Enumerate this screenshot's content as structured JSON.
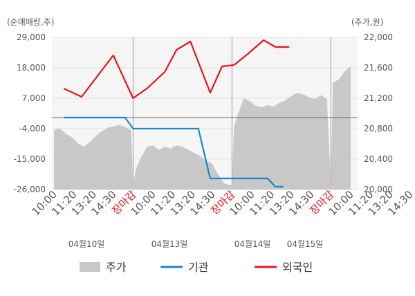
{
  "chart_data": {
    "type": "line",
    "left_axis_title": "(순매매량,주)",
    "right_axis_title": "(주가,원)",
    "left_ylim": [
      -26000,
      29000
    ],
    "left_ticks": [
      "29,000",
      "18,000",
      "7,000",
      "-4,000",
      "-15,000",
      "-26,000"
    ],
    "left_tick_values": [
      29000,
      18000,
      7000,
      -4000,
      -15000,
      -26000
    ],
    "right_ylim": [
      20000,
      22000
    ],
    "right_ticks": [
      "22,000",
      "21,600",
      "21,200",
      "20,800",
      "20,400",
      "20,000"
    ],
    "right_tick_values": [
      22000,
      21600,
      21200,
      20800,
      20400,
      20000
    ],
    "zero_line": 0,
    "x_tick_labels": [
      "10:00",
      "11:20",
      "13:20",
      "14:30",
      "장마감",
      "10:00",
      "11:20",
      "13:20",
      "14:30",
      "장마감",
      "10:00",
      "11:20",
      "13:20",
      "14:30",
      "장마감",
      "10:00",
      "11:20",
      "13:20",
      "14:30"
    ],
    "x_close_label": "장마감",
    "dates": [
      "04월10일",
      "04월13일",
      "04월14일",
      "04월15일"
    ],
    "grid": true,
    "legend_position": "bottom",
    "series": [
      {
        "name": "주가",
        "type": "area",
        "color": "#c8c8c8",
        "axis": "right",
        "x": [
          0,
          0.3,
          0.6,
          0.9,
          1.2,
          1.5,
          1.8,
          2.1,
          2.4,
          2.7,
          3.0,
          3.3,
          3.6,
          3.9,
          4.0,
          4.15,
          4.4,
          4.7,
          5.0,
          5.3,
          5.6,
          5.9,
          6.2,
          6.5,
          6.8,
          7.1,
          7.4,
          7.7,
          8.0,
          8.3,
          8.6,
          8.9,
          9.0,
          9.1,
          9.3,
          9.6,
          9.9,
          10.2,
          10.5,
          10.8,
          11.1,
          11.4,
          11.7,
          12.0,
          12.3,
          12.6,
          12.9,
          13.2,
          13.5,
          13.8,
          14.0,
          14.1,
          14.4,
          14.7,
          15.0
        ],
        "values": [
          20780,
          20800,
          20730,
          20690,
          20610,
          20560,
          20620,
          20700,
          20760,
          20810,
          20830,
          20850,
          20820,
          20780,
          20060,
          20270,
          20420,
          20560,
          20580,
          20520,
          20560,
          20540,
          20580,
          20560,
          20520,
          20480,
          20440,
          20380,
          20340,
          20200,
          20080,
          20060,
          20060,
          20820,
          20990,
          21200,
          21160,
          21100,
          21080,
          21110,
          21090,
          21140,
          21170,
          21230,
          21270,
          21250,
          21210,
          21190,
          21240,
          21190,
          20060,
          21400,
          21450,
          21550,
          21620
        ]
      },
      {
        "name": "기관",
        "type": "line",
        "color": "#1a85c8",
        "axis": "left",
        "x": [
          0.5,
          3.6,
          4.0,
          4.2,
          6.6,
          7.3,
          7.9,
          10.8,
          11.2,
          11.6
        ],
        "values": [
          0,
          0,
          -4000,
          -4000,
          -4000,
          -4000,
          -22000,
          -22000,
          -25000,
          -25000
        ]
      },
      {
        "name": "외국인",
        "type": "line",
        "color": "#e8131b",
        "axis": "left",
        "x": [
          0.5,
          1.4,
          2.2,
          3.0,
          4.0,
          4.7,
          5.6,
          6.2,
          6.9,
          7.9,
          8.5,
          9.1,
          9.8,
          10.6,
          11.2,
          11.9
        ],
        "values": [
          10500,
          7500,
          15000,
          22500,
          7000,
          10500,
          16500,
          24500,
          27500,
          9000,
          18500,
          19000,
          23000,
          28000,
          25500,
          25500
        ]
      }
    ]
  }
}
